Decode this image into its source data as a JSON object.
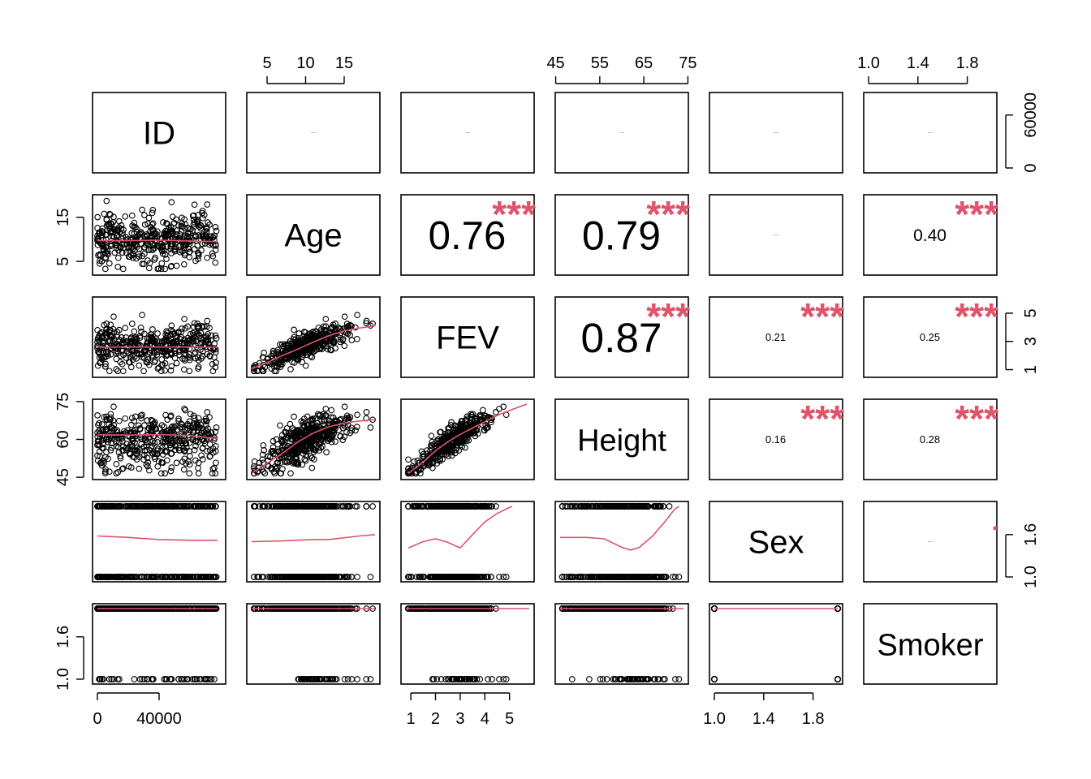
{
  "chart_data": {
    "type": "scatter",
    "subtype": "correlation-matrix",
    "variables": [
      "ID",
      "Age",
      "FEV",
      "Height",
      "Sex",
      "Smoker"
    ],
    "ranges": {
      "ID": [
        0,
        80000
      ],
      "Age": [
        3,
        19
      ],
      "FEV": [
        0.8,
        5.8
      ],
      "Height": [
        46,
        74
      ],
      "Sex": [
        1,
        2
      ],
      "Smoker": [
        1,
        2
      ]
    },
    "ticks": {
      "ID": [
        0,
        40000
      ],
      "ID_right": [
        0,
        60000
      ],
      "Age": [
        5,
        10,
        15
      ],
      "FEV": [
        1,
        2,
        3,
        4,
        5
      ],
      "Height": [
        45,
        55,
        65,
        75
      ],
      "Sex": [
        1.0,
        1.4,
        1.8
      ],
      "Smoker": [
        1.0,
        1.4,
        1.8
      ]
    },
    "ticks_left": {
      "Age": [
        5,
        15
      ],
      "Height": [
        45,
        60,
        75
      ],
      "Smoker": [
        1.0,
        1.6
      ]
    },
    "ticks_right": {
      "ID": [
        0,
        60000
      ],
      "FEV": [
        1,
        3,
        5
      ],
      "Sex": [
        1.0,
        1.6
      ]
    },
    "tick_labels": {
      "ID": [
        "0",
        "40000"
      ],
      "ID_right": [
        "0",
        "60000"
      ],
      "Age": [
        "5",
        "10",
        "15"
      ],
      "FEV": [
        "1",
        "2",
        "3",
        "4",
        "5"
      ],
      "Height": [
        "45",
        "55",
        "65",
        "75"
      ],
      "Sex": [
        "1.0",
        "1.4",
        "1.8"
      ],
      "Smoker": [
        "1.0",
        "1.4",
        "1.8"
      ],
      "Age_left": [
        "5",
        "15"
      ],
      "Height_left": [
        "45",
        "60",
        "75"
      ],
      "Smoker_left": [
        "1.0",
        "1.6"
      ],
      "FEV_right": [
        "1",
        "3",
        "5"
      ],
      "Sex_right": [
        "1.0",
        "1.6"
      ]
    },
    "correlations": [
      {
        "row": "ID",
        "col": "Age",
        "label": "",
        "stars": ""
      },
      {
        "row": "ID",
        "col": "FEV",
        "label": "",
        "stars": ""
      },
      {
        "row": "ID",
        "col": "Height",
        "label": "",
        "stars": ""
      },
      {
        "row": "ID",
        "col": "Sex",
        "label": "",
        "stars": ""
      },
      {
        "row": "ID",
        "col": "Smoker",
        "label": "",
        "stars": ""
      },
      {
        "row": "Age",
        "col": "FEV",
        "label": "0.76",
        "stars": "***"
      },
      {
        "row": "Age",
        "col": "Height",
        "label": "0.79",
        "stars": "***"
      },
      {
        "row": "Age",
        "col": "Sex",
        "label": "",
        "stars": ""
      },
      {
        "row": "Age",
        "col": "Smoker",
        "label": "0.40",
        "stars": "***"
      },
      {
        "row": "FEV",
        "col": "Height",
        "label": "0.87",
        "stars": "***"
      },
      {
        "row": "FEV",
        "col": "Sex",
        "label": "0.21",
        "stars": "***"
      },
      {
        "row": "FEV",
        "col": "Smoker",
        "label": "0.25",
        "stars": "***"
      },
      {
        "row": "Height",
        "col": "Sex",
        "label": "0.16",
        "stars": "***"
      },
      {
        "row": "Height",
        "col": "Smoker",
        "label": "0.28",
        "stars": "***"
      },
      {
        "row": "Sex",
        "col": "Smoker",
        "label": "",
        "stars": "."
      }
    ],
    "trend_lines": {
      "Age~ID": [
        [
          0,
          9.7
        ],
        [
          20000,
          9.7
        ],
        [
          40000,
          9.8
        ],
        [
          60000,
          9.6
        ],
        [
          78000,
          9.5
        ]
      ],
      "FEV~ID": [
        [
          0,
          2.6
        ],
        [
          20000,
          2.6
        ],
        [
          40000,
          2.6
        ],
        [
          60000,
          2.6
        ],
        [
          78000,
          2.6
        ]
      ],
      "FEV~Age": [
        [
          3,
          1.05
        ],
        [
          5,
          1.5
        ],
        [
          7,
          2.0
        ],
        [
          9,
          2.45
        ],
        [
          11,
          2.95
        ],
        [
          13,
          3.4
        ],
        [
          15,
          3.75
        ],
        [
          17,
          3.95
        ],
        [
          19,
          4.1
        ]
      ],
      "Height~ID": [
        [
          0,
          61.8
        ],
        [
          20000,
          61.7
        ],
        [
          40000,
          61.9
        ],
        [
          60000,
          61.5
        ],
        [
          78000,
          60.3
        ]
      ],
      "Height~Age": [
        [
          3,
          46.5
        ],
        [
          5,
          50.5
        ],
        [
          7,
          54.5
        ],
        [
          9,
          59.0
        ],
        [
          11,
          62.5
        ],
        [
          13,
          65.0
        ],
        [
          15,
          66.5
        ],
        [
          17,
          67.3
        ],
        [
          19,
          67.8
        ]
      ],
      "Height~FEV": [
        [
          0.9,
          46.5
        ],
        [
          1.5,
          51
        ],
        [
          2,
          55.5
        ],
        [
          2.5,
          59
        ],
        [
          3,
          62
        ],
        [
          3.5,
          64.5
        ],
        [
          4,
          67
        ],
        [
          4.5,
          69.5
        ],
        [
          5,
          71.5
        ],
        [
          5.7,
          74
        ]
      ],
      "Sex~ID": [
        [
          0,
          1.58
        ],
        [
          20000,
          1.56
        ],
        [
          40000,
          1.53
        ],
        [
          60000,
          1.52
        ],
        [
          78000,
          1.52
        ]
      ],
      "Sex~Age": [
        [
          3,
          1.5
        ],
        [
          7,
          1.51
        ],
        [
          11,
          1.53
        ],
        [
          13,
          1.53
        ],
        [
          17,
          1.58
        ],
        [
          19,
          1.6
        ]
      ],
      "Sex~FEV": [
        [
          0.9,
          1.41
        ],
        [
          1.5,
          1.5
        ],
        [
          2.0,
          1.54
        ],
        [
          2.5,
          1.49
        ],
        [
          3.0,
          1.41
        ],
        [
          3.5,
          1.6
        ],
        [
          4.0,
          1.78
        ],
        [
          4.5,
          1.9
        ],
        [
          5.1,
          2.0
        ]
      ],
      "Sex~Height": [
        [
          46,
          1.56
        ],
        [
          52,
          1.56
        ],
        [
          56,
          1.54
        ],
        [
          60,
          1.42
        ],
        [
          62,
          1.38
        ],
        [
          64,
          1.42
        ],
        [
          67,
          1.58
        ],
        [
          70,
          1.8
        ],
        [
          72,
          1.96
        ],
        [
          73,
          2.0
        ]
      ],
      "Smoker~ID": [
        [
          0,
          2.0
        ],
        [
          78000,
          2.0
        ]
      ],
      "Smoker~Age": [
        [
          3,
          2.0
        ],
        [
          19,
          2.0
        ]
      ],
      "Smoker~FEV": [
        [
          0.8,
          2.0
        ],
        [
          5.8,
          2.0
        ]
      ],
      "Smoker~Height": [
        [
          46,
          2.0
        ],
        [
          74,
          2.0
        ]
      ],
      "Smoker~Sex": [
        [
          1.0,
          2.0
        ],
        [
          2.0,
          2.0
        ]
      ]
    },
    "point_color": "#000000",
    "trend_color": "#DF536B",
    "stars_color": "#DF536B",
    "grid": false
  }
}
